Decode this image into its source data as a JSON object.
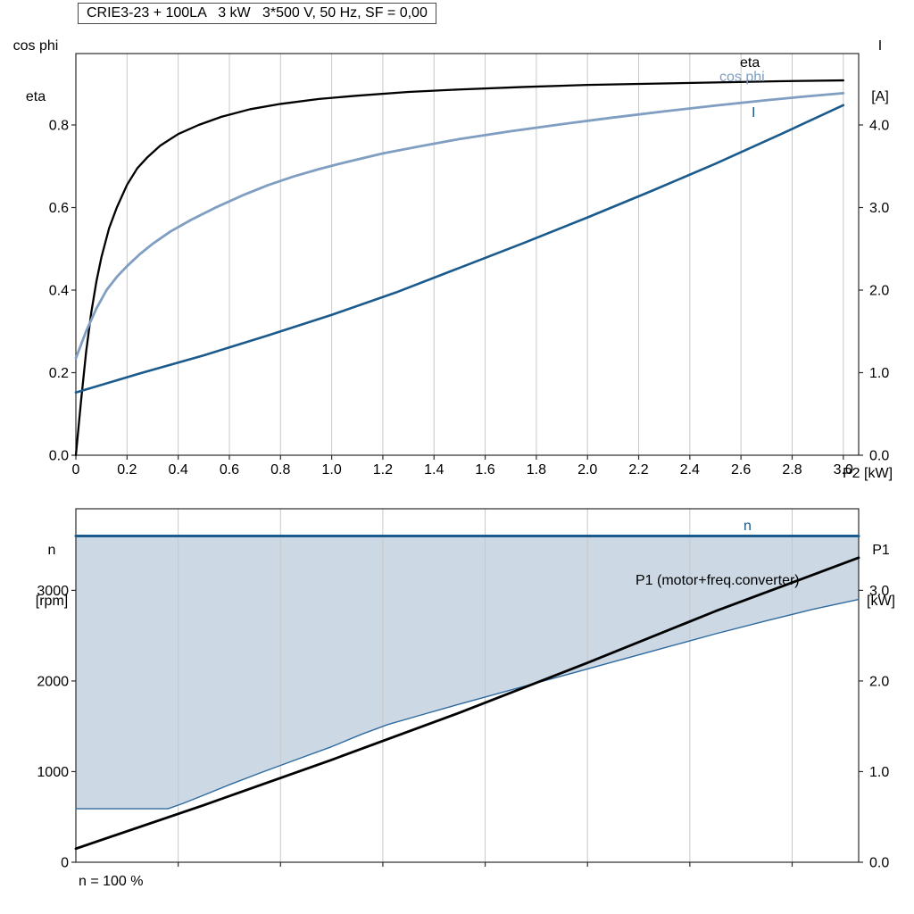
{
  "header": {
    "title": "CRIE3-23 + 100LA   3 kW   3*500 V, 50 Hz, SF = 0,00"
  },
  "chart_data": [
    {
      "type": "line",
      "id": "motor-performance",
      "title": "CRIE3-23 + 100LA   3 kW   3*500 V, 50 Hz, SF = 0,00",
      "x_axis": {
        "label": "P2 [kW]",
        "range": [
          0,
          3.06
        ],
        "tick_values": [
          0,
          0.2,
          0.4,
          0.6,
          0.8,
          1.0,
          1.2,
          1.4,
          1.6,
          1.8,
          2.0,
          2.2,
          2.4,
          2.6,
          2.8,
          3.0
        ],
        "tick_labels": [
          "0",
          "0.2",
          "0.4",
          "0.6",
          "0.8",
          "1.0",
          "1.2",
          "1.4",
          "1.6",
          "1.8",
          "2.0",
          "2.2",
          "2.4",
          "2.6",
          "2.8",
          "3.0"
        ],
        "grid": true
      },
      "left_axis": {
        "label_lines": [
          "cos phi",
          "eta"
        ],
        "range": [
          0,
          0.973
        ],
        "tick_values": [
          0,
          0.2,
          0.4,
          0.6,
          0.8
        ],
        "tick_labels": [
          "0.0",
          "0.2",
          "0.4",
          "0.6",
          "0.8"
        ]
      },
      "right_axis": {
        "label_lines": [
          "I",
          "[A]"
        ],
        "range": [
          0,
          4.865
        ],
        "tick_values": [
          0,
          1,
          2,
          3,
          4
        ],
        "tick_labels": [
          "0.0",
          "1.0",
          "2.0",
          "3.0",
          "4.0"
        ]
      },
      "series": [
        {
          "name": "eta",
          "axis": "left",
          "color": "#000000",
          "width": 2.3,
          "points": [
            [
              0,
              0
            ],
            [
              0.02,
              0.13
            ],
            [
              0.04,
              0.25
            ],
            [
              0.06,
              0.345
            ],
            [
              0.08,
              0.42
            ],
            [
              0.1,
              0.48
            ],
            [
              0.13,
              0.55
            ],
            [
              0.16,
              0.6
            ],
            [
              0.2,
              0.655
            ],
            [
              0.24,
              0.695
            ],
            [
              0.28,
              0.722
            ],
            [
              0.33,
              0.75
            ],
            [
              0.4,
              0.778
            ],
            [
              0.48,
              0.8
            ],
            [
              0.57,
              0.82
            ],
            [
              0.68,
              0.838
            ],
            [
              0.8,
              0.851
            ],
            [
              0.95,
              0.863
            ],
            [
              1.1,
              0.871
            ],
            [
              1.3,
              0.88
            ],
            [
              1.5,
              0.886
            ],
            [
              1.75,
              0.892
            ],
            [
              2.0,
              0.897
            ],
            [
              2.25,
              0.9
            ],
            [
              2.5,
              0.903
            ],
            [
              2.75,
              0.906
            ],
            [
              3.0,
              0.908
            ]
          ]
        },
        {
          "name": "cos phi",
          "axis": "left",
          "color": "#7f9ec1",
          "width": 2.8,
          "points": [
            [
              0,
              0.235
            ],
            [
              0.04,
              0.3
            ],
            [
              0.08,
              0.355
            ],
            [
              0.12,
              0.4
            ],
            [
              0.16,
              0.432
            ],
            [
              0.2,
              0.458
            ],
            [
              0.25,
              0.487
            ],
            [
              0.3,
              0.512
            ],
            [
              0.37,
              0.542
            ],
            [
              0.45,
              0.57
            ],
            [
              0.55,
              0.601
            ],
            [
              0.65,
              0.629
            ],
            [
              0.75,
              0.654
            ],
            [
              0.85,
              0.675
            ],
            [
              0.95,
              0.693
            ],
            [
              1.05,
              0.709
            ],
            [
              1.2,
              0.731
            ],
            [
              1.35,
              0.749
            ],
            [
              1.5,
              0.766
            ],
            [
              1.7,
              0.785
            ],
            [
              1.9,
              0.802
            ],
            [
              2.1,
              0.818
            ],
            [
              2.3,
              0.833
            ],
            [
              2.5,
              0.847
            ],
            [
              2.7,
              0.86
            ],
            [
              2.85,
              0.869
            ],
            [
              3.0,
              0.877
            ]
          ]
        },
        {
          "name": "I",
          "axis": "right",
          "color": "#1a5a8c",
          "width": 2.6,
          "points": [
            [
              0,
              0.76
            ],
            [
              0.25,
              0.99
            ],
            [
              0.5,
              1.21
            ],
            [
              0.75,
              1.45
            ],
            [
              1.0,
              1.7
            ],
            [
              1.25,
              1.97
            ],
            [
              1.5,
              2.27
            ],
            [
              1.75,
              2.57
            ],
            [
              2.0,
              2.88
            ],
            [
              2.25,
              3.2
            ],
            [
              2.5,
              3.53
            ],
            [
              2.75,
              3.88
            ],
            [
              3.0,
              4.24
            ]
          ]
        }
      ]
    },
    {
      "type": "line",
      "id": "speed-and-input-power",
      "x_axis": {
        "label": "",
        "range": [
          0,
          3.06
        ],
        "tick_values": [
          0.4,
          0.8,
          1.2,
          1.6,
          2.0,
          2.4,
          2.8
        ],
        "tick_labels": [],
        "grid": true
      },
      "left_axis": {
        "label_lines": [
          "n",
          "[rpm]"
        ],
        "range": [
          0,
          3900
        ],
        "tick_values": [
          0,
          1000,
          2000,
          3000
        ],
        "tick_labels": [
          "0",
          "1000",
          "2000",
          "3000"
        ]
      },
      "right_axis": {
        "label_lines": [
          "P1",
          "[kW]"
        ],
        "range": [
          0,
          3.9
        ],
        "tick_values": [
          0,
          1,
          2,
          3
        ],
        "tick_labels": [
          "0.0",
          "1.0",
          "2.0",
          "3.0"
        ]
      },
      "region": {
        "fill": "#ccd9e5",
        "top_value": 3600,
        "lower_series": "n-lower-bound"
      },
      "series": [
        {
          "name": "n",
          "axis": "left",
          "color": "#1a5a8c",
          "width": 3,
          "points": [
            [
              0,
              3600
            ],
            [
              3.06,
              3600
            ]
          ]
        },
        {
          "name": "n-lower-bound",
          "axis": "left",
          "color": "#2f6a9f",
          "width": 1.4,
          "points": [
            [
              0,
              590
            ],
            [
              0.36,
              590
            ],
            [
              0.42,
              650
            ],
            [
              0.5,
              740
            ],
            [
              0.6,
              855
            ],
            [
              0.72,
              985
            ],
            [
              0.85,
              1120
            ],
            [
              1.0,
              1275
            ],
            [
              1.12,
              1415
            ],
            [
              1.22,
              1520
            ],
            [
              1.35,
              1625
            ],
            [
              1.5,
              1745
            ],
            [
              1.7,
              1900
            ],
            [
              1.9,
              2055
            ],
            [
              2.1,
              2210
            ],
            [
              2.3,
              2365
            ],
            [
              2.5,
              2520
            ],
            [
              2.7,
              2665
            ],
            [
              2.88,
              2790
            ],
            [
              3.06,
              2900
            ]
          ]
        },
        {
          "name": "P1 (motor+freq.converter)",
          "axis": "right",
          "color": "#000000",
          "width": 2.8,
          "points": [
            [
              0,
              0.15
            ],
            [
              0.5,
              0.63
            ],
            [
              1.0,
              1.13
            ],
            [
              1.5,
              1.65
            ],
            [
              2.0,
              2.2
            ],
            [
              2.5,
              2.77
            ],
            [
              3.06,
              3.36
            ]
          ]
        }
      ],
      "annotation": "n = 100 %"
    }
  ]
}
